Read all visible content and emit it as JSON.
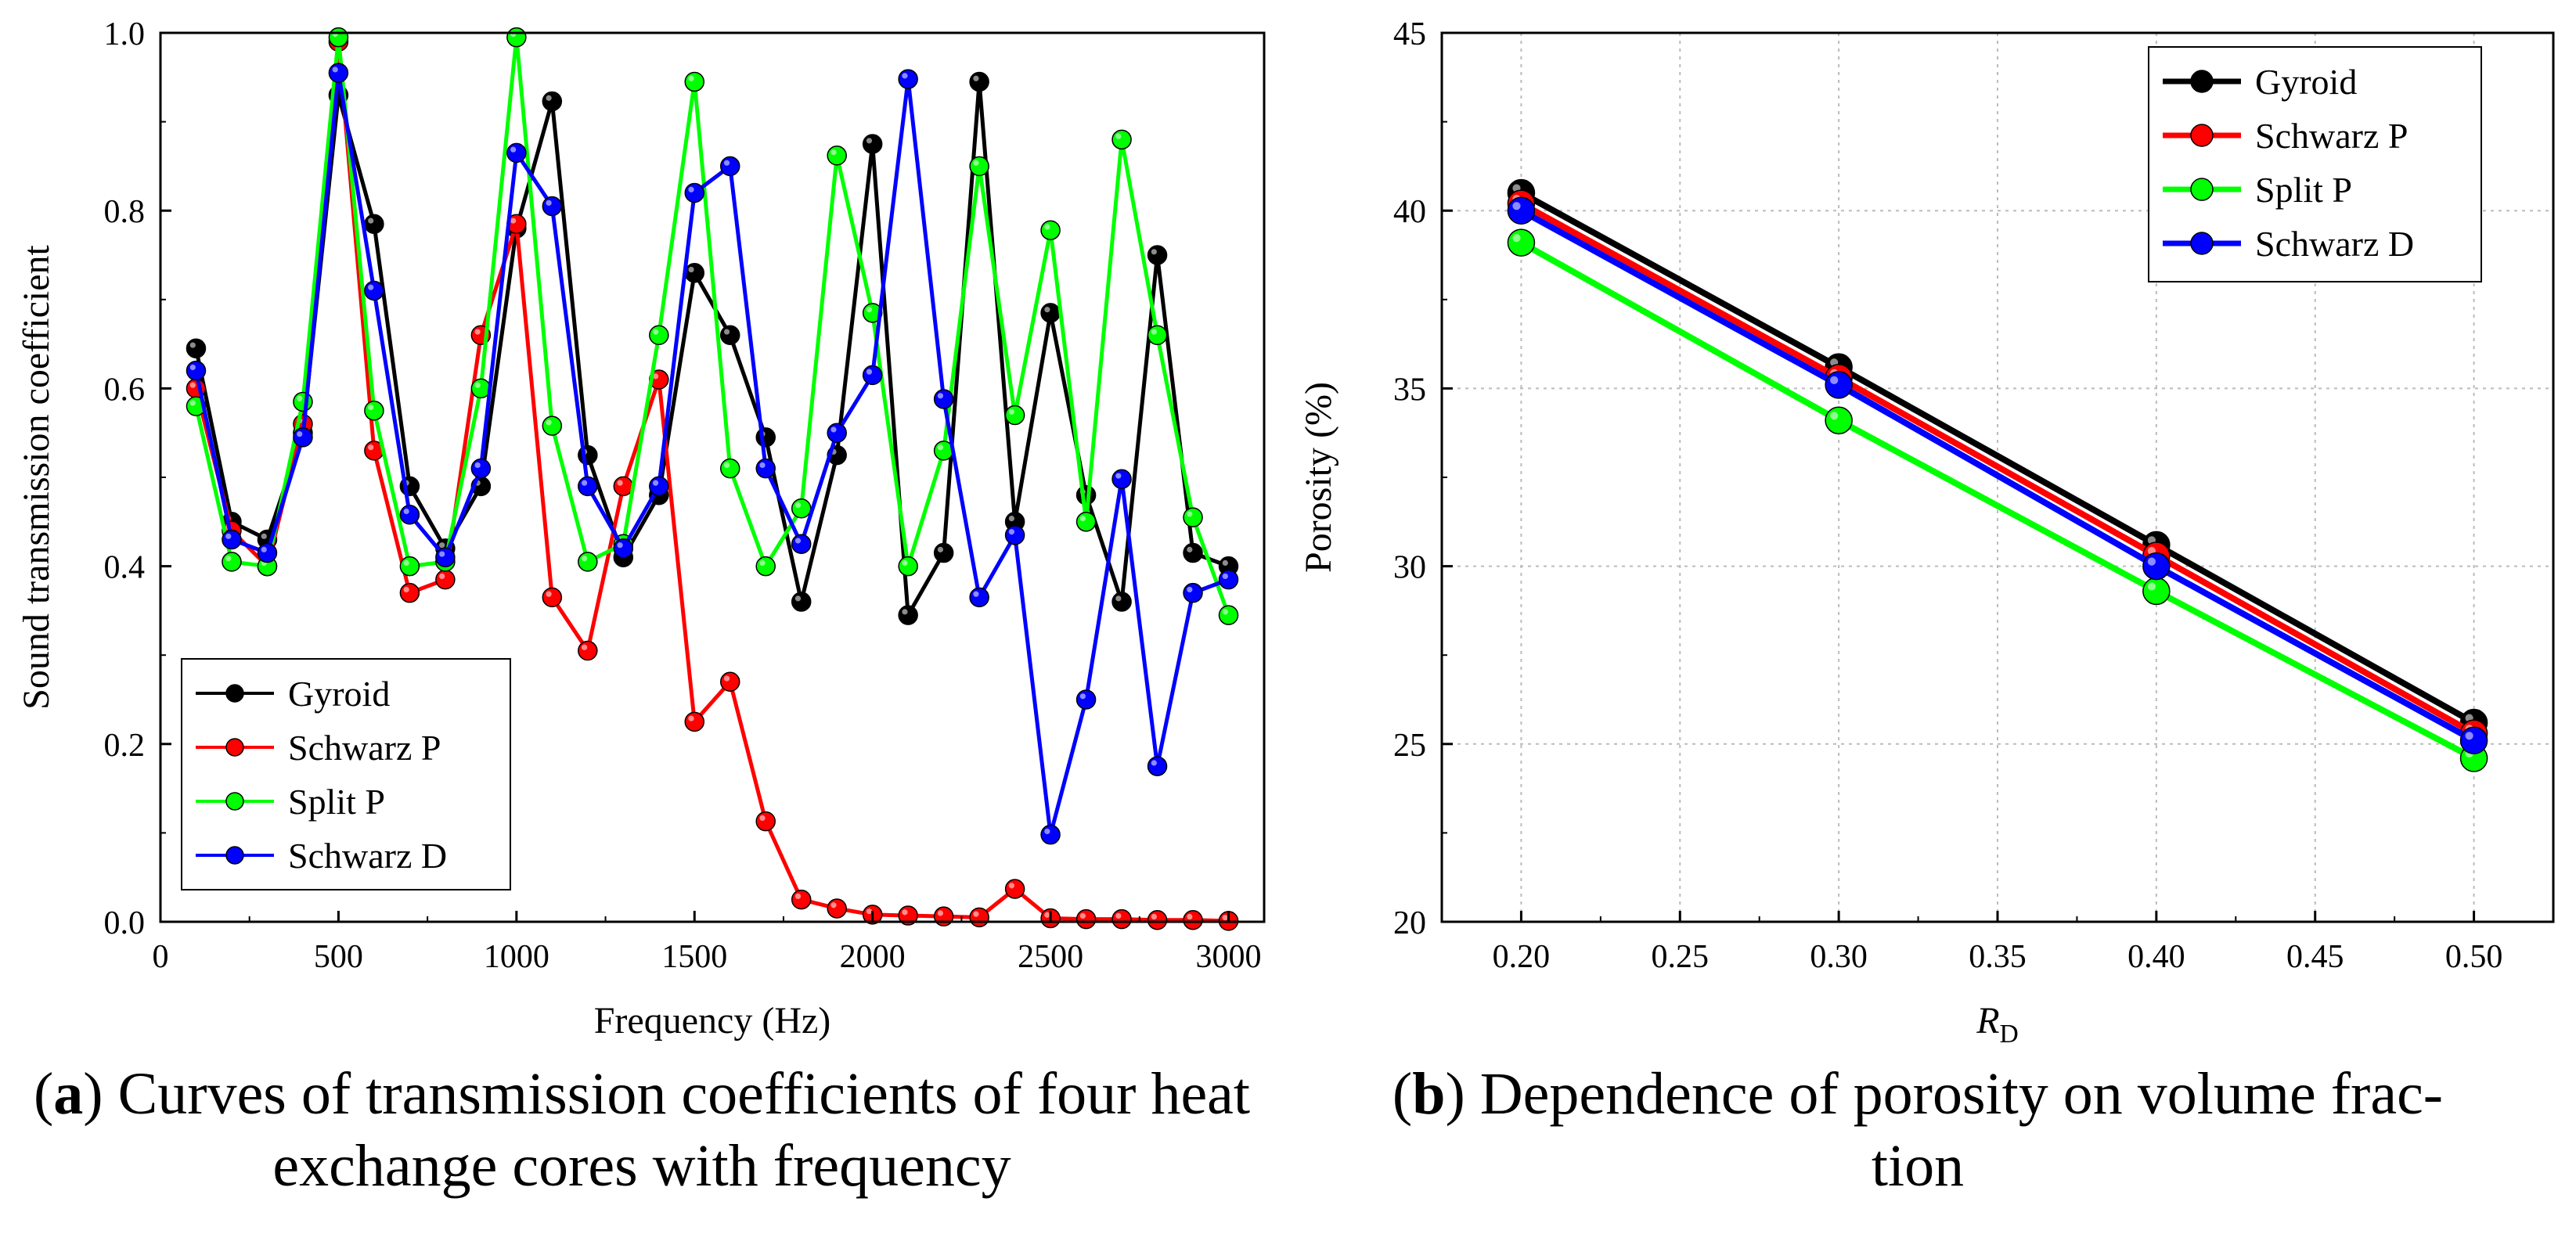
{
  "charts": [
    {
      "id": "a",
      "caption": {
        "letter": "a",
        "open": "(",
        "close": ")",
        "text": "Curves of transmission coefficients of four heat exchange cores with frequency"
      },
      "chart_data": {
        "type": "line",
        "title": "",
        "xlabel": "Frequency (Hz)",
        "ylabel": "Sound transmission coefficient",
        "xlim": [
          0,
          3100
        ],
        "ylim": [
          0,
          1.0
        ],
        "xticks": [
          0,
          500,
          1000,
          1500,
          2000,
          2500,
          3000
        ],
        "xtick_labels": [
          "0",
          "500",
          "1000",
          "1500",
          "2000",
          "2500",
          "3000"
        ],
        "yticks": [
          0,
          0.2,
          0.4,
          0.6,
          0.8,
          1.0
        ],
        "ytick_labels": [
          "0.0",
          "0.2",
          "0.4",
          "0.6",
          "0.8",
          "1.0"
        ],
        "grid": false,
        "legend_position": "bottom-left",
        "x": [
          100,
          200,
          300,
          400,
          500,
          600,
          700,
          800,
          900,
          1000,
          1100,
          1200,
          1300,
          1400,
          1500,
          1600,
          1700,
          1800,
          1900,
          2000,
          2100,
          2200,
          2300,
          2400,
          2500,
          2600,
          2700,
          2800,
          2900,
          3000
        ],
        "series": [
          {
            "name": "Gyroid",
            "color": "#000000",
            "values": [
              0.645,
              0.45,
              0.43,
              0.55,
              0.93,
              0.785,
              0.49,
              0.42,
              0.49,
              0.78,
              0.923,
              0.525,
              0.41,
              0.48,
              0.73,
              0.66,
              0.545,
              0.36,
              0.525,
              0.875,
              0.345,
              0.415,
              0.945,
              0.45,
              0.685,
              0.48,
              0.36,
              0.75,
              0.415,
              0.4
            ]
          },
          {
            "name": "Schwarz P",
            "color": "#ff0000",
            "values": [
              0.6,
              0.44,
              0.4,
              0.56,
              0.99,
              0.53,
              0.37,
              0.385,
              0.66,
              0.785,
              0.365,
              0.305,
              0.49,
              0.61,
              0.225,
              0.27,
              0.113,
              0.025,
              0.015,
              0.008,
              0.007,
              0.006,
              0.005,
              0.037,
              0.004,
              0.003,
              0.003,
              0.002,
              0.002,
              0.001
            ]
          },
          {
            "name": "Split P",
            "color": "#00ff00",
            "values": [
              0.58,
              0.405,
              0.4,
              0.585,
              0.995,
              0.575,
              0.4,
              0.405,
              0.6,
              0.995,
              0.558,
              0.405,
              0.425,
              0.66,
              0.945,
              0.51,
              0.4,
              0.465,
              0.862,
              0.685,
              0.4,
              0.53,
              0.85,
              0.57,
              0.778,
              0.45,
              0.88,
              0.66,
              0.455,
              0.345
            ]
          },
          {
            "name": "Schwarz D",
            "color": "#0000ff",
            "values": [
              0.62,
              0.43,
              0.415,
              0.545,
              0.955,
              0.71,
              0.458,
              0.41,
              0.51,
              0.865,
              0.805,
              0.49,
              0.42,
              0.49,
              0.82,
              0.85,
              0.51,
              0.425,
              0.55,
              0.615,
              0.948,
              0.588,
              0.365,
              0.435,
              0.098,
              0.25,
              0.498,
              0.175,
              0.37,
              0.385
            ]
          }
        ]
      }
    },
    {
      "id": "b",
      "caption": {
        "letter": "b",
        "open": "(",
        "close": ")",
        "text": "Dependence of porosity on volume frac-",
        "text2": "tion"
      },
      "chart_data": {
        "type": "line",
        "title": "",
        "xlabel": "R",
        "xlabel_sub": "D",
        "ylabel": "Porosity (%)",
        "xlim": [
          0.175,
          0.525
        ],
        "ylim": [
          20,
          45
        ],
        "xticks": [
          0.2,
          0.25,
          0.3,
          0.35,
          0.4,
          0.45,
          0.5
        ],
        "xtick_labels": [
          "0.20",
          "0.25",
          "0.30",
          "0.35",
          "0.40",
          "0.45",
          "0.50"
        ],
        "yticks": [
          20,
          25,
          30,
          35,
          40,
          45
        ],
        "ytick_labels": [
          "20",
          "25",
          "30",
          "35",
          "40",
          "45"
        ],
        "grid": true,
        "legend_position": "top-right",
        "x": [
          0.2,
          0.3,
          0.4,
          0.5
        ],
        "series": [
          {
            "name": "Gyroid",
            "color": "#000000",
            "values": [
              40.5,
              35.6,
              30.6,
              25.6
            ]
          },
          {
            "name": "Schwarz P",
            "color": "#ff0000",
            "values": [
              40.2,
              35.3,
              30.3,
              25.3
            ]
          },
          {
            "name": "Split P",
            "color": "#00ff00",
            "values": [
              39.1,
              34.1,
              29.3,
              24.6
            ]
          },
          {
            "name": "Schwarz D",
            "color": "#0000ff",
            "values": [
              40.0,
              35.1,
              30.0,
              25.1
            ]
          }
        ]
      }
    }
  ]
}
